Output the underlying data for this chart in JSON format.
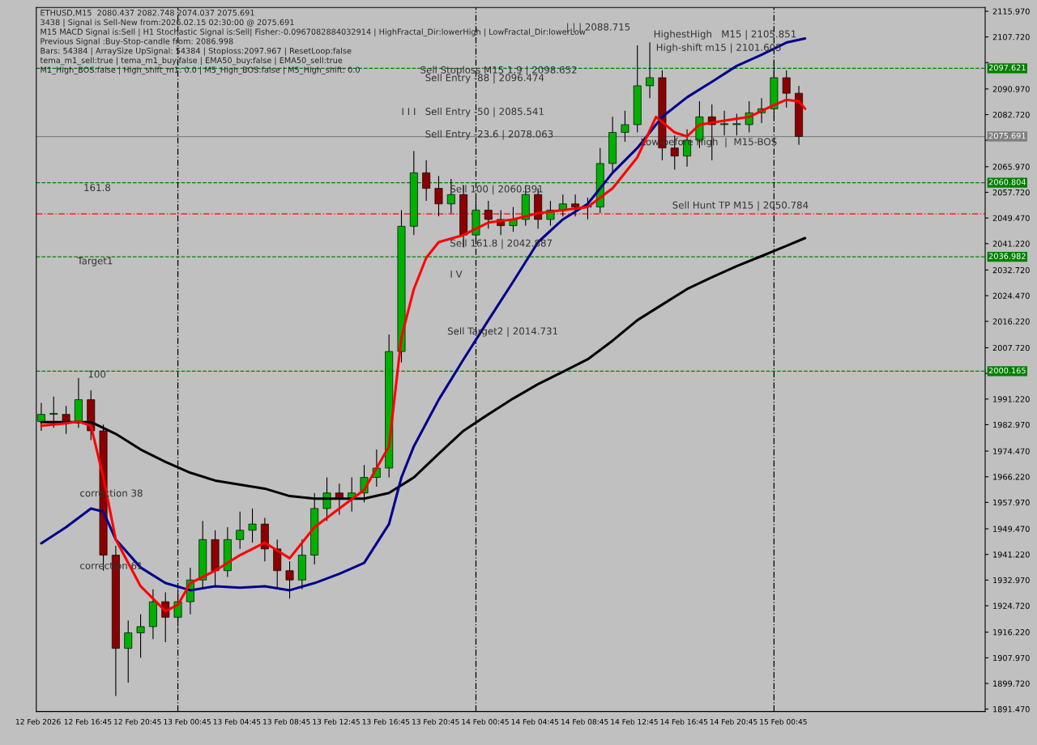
{
  "chart_data": {
    "type": "candlestick",
    "colors": [
      "#00b000",
      "#00b000",
      "#8b0000",
      "#00b000",
      "#8b0000",
      "#8b0000",
      "#8b0000",
      "#00b000",
      "#00b000",
      "#00b000",
      "#8b0000",
      "#00b000",
      "#00b000",
      "#00b000",
      "#8b0000",
      "#00b000",
      "#00b000",
      "#00b000",
      "#8b0000",
      "#8b0000",
      "#8b0000",
      "#00b000",
      "#00b000",
      "#00b000",
      "#8b0000",
      "#00b000",
      "#00b000",
      "#00b000",
      "#00b000",
      "#00b000",
      "#00b000",
      "#8b0000",
      "#8b0000",
      "#00b000",
      "#8b0000",
      "#00b000",
      "#8b0000",
      "#8b0000",
      "#00b000",
      "#00b000",
      "#8b0000",
      "#00b000",
      "#00b000",
      "#8b0000",
      "#00b000",
      "#00b000",
      "#00b000",
      "#00b000",
      "#00b000",
      "#00b000",
      "#8b0000",
      "#8b0000",
      "#00b000",
      "#00b000",
      "#8b0000",
      "#00b000",
      "#00b000",
      "#00b000",
      "#00b000",
      "#00b000",
      "#8b0000",
      "#8b0000"
    ],
    "annotations": [
      "ETHUSD,M15  2080.437 2082.748 2074.037 2075.691",
      "3438 | Signal is Sell-New from:2026.02.15 02:30:00 @ 2075.691",
      "M15 MACD Signal is:Sell | H1 Stochastic Signal is:Sell| Fisher:-0.0967082884032914 | HighFractal_Dir:lowerHigh | LowFractal_Dir:lowerLow",
      "Previous Signal :Buy-Stop-candle from: 2086.998",
      "Bars: 54384 | ArraySize UpSignal: 54384 | Stoploss:2097.967 | ResetLoop:false",
      "tema_m1_sell:true | tema_m1_buy:false | EMA50_buy:false | EMA50_sell:true",
      "M1_High_BOS:false | High_shift_m1: 0.0 | M5_High_BOS:false | M5_High_shift: 0.0",
      "Sell Stoploss M15 1.9 | 2098.652",
      "Sell Entry -88 | 2096.474",
      "Sell Entry -50 | 2085.541",
      "Sell Entry -23.6 | 2078.063",
      "Sell 100 | 2060.391",
      "Sell 161.8 | 2042.887",
      "Sell Target2 | 2014.731",
      "I I I",
      "I V",
      "| | | 2088.715",
      "HighestHigh   M15 | 2105.851",
      "High-shift m15 | 2101.605",
      "Low before High  |  M15-BOS",
      "Sell Hunt TP M15 | 2050.784",
      "161.8",
      "Target1",
      "100",
      "correction 38",
      "correction 61"
    ],
    "x": [
      "2026-02-12T13:00",
      "2026-02-12T14:00",
      "2026-02-12T15:00",
      "2026-02-12T16:00",
      "2026-02-12T17:00",
      "2026-02-12T18:00",
      "2026-02-12T19:00",
      "2026-02-12T20:00",
      "2026-02-12T21:00",
      "2026-02-12T22:00",
      "2026-02-12T23:00",
      "2026-02-13T00:00",
      "2026-02-13T01:00",
      "2026-02-13T02:00",
      "2026-02-13T03:00",
      "2026-02-13T04:00",
      "2026-02-13T05:00",
      "2026-02-13T06:00",
      "2026-02-13T07:00",
      "2026-02-13T08:00",
      "2026-02-13T09:00",
      "2026-02-13T10:00",
      "2026-02-13T11:00",
      "2026-02-13T12:00",
      "2026-02-13T13:00",
      "2026-02-13T14:00",
      "2026-02-13T15:00",
      "2026-02-13T16:00",
      "2026-02-13T17:00",
      "2026-02-13T18:00",
      "2026-02-13T19:00",
      "2026-02-13T20:00",
      "2026-02-13T21:00",
      "2026-02-13T22:00",
      "2026-02-13T23:00",
      "2026-02-14T00:00",
      "2026-02-14T01:00",
      "2026-02-14T02:00",
      "2026-02-14T03:00",
      "2026-02-14T04:00",
      "2026-02-14T05:00",
      "2026-02-14T06:00",
      "2026-02-14T07:00",
      "2026-02-14T08:00",
      "2026-02-14T09:00",
      "2026-02-14T10:00",
      "2026-02-14T11:00",
      "2026-02-14T12:00",
      "2026-02-14T13:00",
      "2026-02-14T14:00",
      "2026-02-14T15:00",
      "2026-02-14T16:00",
      "2026-02-14T17:00",
      "2026-02-14T18:00",
      "2026-02-14T19:00",
      "2026-02-14T20:00",
      "2026-02-14T21:00",
      "2026-02-14T22:00",
      "2026-02-14T23:00",
      "2026-02-15T00:00",
      "2026-02-15T01:00",
      "2026-02-15T02:00"
    ],
    "ohlc": [
      [
        1984,
        1990,
        1981,
        1986.3
      ],
      [
        1986.3,
        1992,
        1982,
        1986.3
      ],
      [
        1986.3,
        1989,
        1980,
        1983.8
      ],
      [
        1983.8,
        1998,
        1982,
        1991
      ],
      [
        1991,
        1994,
        1978,
        1981
      ],
      [
        1981,
        1983,
        1936,
        1941
      ],
      [
        1941,
        1944,
        1895.7,
        1911
      ],
      [
        1911,
        1920,
        1900,
        1916
      ],
      [
        1916,
        1922,
        1908,
        1918
      ],
      [
        1918,
        1930,
        1914,
        1926
      ],
      [
        1926,
        1929,
        1913,
        1921
      ],
      [
        1921,
        1930,
        1918,
        1926
      ],
      [
        1926,
        1937,
        1922,
        1933
      ],
      [
        1933,
        1952,
        1930,
        1946
      ],
      [
        1946,
        1949,
        1931,
        1936
      ],
      [
        1936,
        1950,
        1934,
        1946
      ],
      [
        1946,
        1955,
        1943,
        1949
      ],
      [
        1949,
        1956,
        1945,
        1951
      ],
      [
        1951,
        1953,
        1939,
        1943
      ],
      [
        1943,
        1946,
        1930,
        1936
      ],
      [
        1936,
        1939,
        1927,
        1933
      ],
      [
        1933,
        1946,
        1930,
        1941
      ],
      [
        1941,
        1961,
        1938,
        1956
      ],
      [
        1956,
        1966,
        1952,
        1961
      ],
      [
        1961,
        1964,
        1954,
        1959
      ],
      [
        1959,
        1966,
        1955,
        1961
      ],
      [
        1961,
        1970,
        1958,
        1966
      ],
      [
        1966,
        1975,
        1963,
        1969
      ],
      [
        1969,
        2012,
        1966,
        2006.5
      ],
      [
        2006.5,
        2052,
        2003,
        2046.8
      ],
      [
        2046.8,
        2071,
        2044,
        2064
      ],
      [
        2064,
        2068,
        2055,
        2059
      ],
      [
        2059,
        2063,
        2050,
        2054
      ],
      [
        2054,
        2062,
        2051,
        2057
      ],
      [
        2057,
        2060,
        2040,
        2044
      ],
      [
        2044,
        2056,
        2041,
        2052
      ],
      [
        2052,
        2055,
        2046,
        2049
      ],
      [
        2049,
        2052,
        2044,
        2047
      ],
      [
        2047,
        2053,
        2045,
        2049
      ],
      [
        2049,
        2060,
        2047,
        2057
      ],
      [
        2057,
        2059,
        2046,
        2049
      ],
      [
        2049,
        2055,
        2047,
        2052
      ],
      [
        2052,
        2057,
        2050,
        2054
      ],
      [
        2054,
        2057,
        2050,
        2053
      ],
      [
        2053,
        2056,
        2049,
        2053
      ],
      [
        2053,
        2072,
        2051,
        2067
      ],
      [
        2067,
        2082,
        2064,
        2077
      ],
      [
        2077,
        2084,
        2074,
        2079.5
      ],
      [
        2079.5,
        2105,
        2077,
        2092
      ],
      [
        2092,
        2106,
        2088,
        2094.6
      ],
      [
        2094.6,
        2097,
        2068,
        2072
      ],
      [
        2072,
        2076,
        2065,
        2069.4
      ],
      [
        2069.4,
        2078,
        2066,
        2074.5
      ],
      [
        2074.5,
        2087,
        2072,
        2082
      ],
      [
        2082,
        2086,
        2068,
        2079.5
      ],
      [
        2079.5,
        2084,
        2076,
        2079.5
      ],
      [
        2079.5,
        2083,
        2076,
        2079.5
      ],
      [
        2079.5,
        2087,
        2077,
        2083.3
      ],
      [
        2083.3,
        2088,
        2080,
        2084.6
      ],
      [
        2084.6,
        2100,
        2082,
        2094.6
      ],
      [
        2094.6,
        2097,
        2085,
        2089.6
      ],
      [
        2089.6,
        2092,
        2073,
        2075.7
      ]
    ],
    "series": [
      {
        "type": "line",
        "color": "#000000",
        "x": [
          "2026-02-12T13:00",
          "2026-02-12T17:00",
          "2026-02-12T19:00",
          "2026-02-12T21:00",
          "2026-02-12T23:00",
          "2026-02-13T01:00",
          "2026-02-13T03:00",
          "2026-02-13T05:00",
          "2026-02-13T07:00",
          "2026-02-13T09:00",
          "2026-02-13T11:00",
          "2026-02-13T13:00",
          "2026-02-13T15:00",
          "2026-02-13T17:00",
          "2026-02-13T19:00",
          "2026-02-13T21:00",
          "2026-02-13T23:00",
          "2026-02-14T01:00",
          "2026-02-14T03:00",
          "2026-02-14T05:00",
          "2026-02-14T07:00",
          "2026-02-14T09:00",
          "2026-02-14T11:00",
          "2026-02-14T13:00",
          "2026-02-14T15:00",
          "2026-02-14T17:00",
          "2026-02-14T19:00",
          "2026-02-14T21:00",
          "2026-02-14T23:00",
          "2026-02-15T01:00",
          "2026-02-15T02:30"
        ],
        "values": [
          1983.8,
          1983.8,
          1980,
          1975,
          1971,
          1967.5,
          1965,
          1963.7,
          1962.4,
          1960,
          1959.2,
          1959.2,
          1959.2,
          1961,
          1966,
          1973.6,
          1981,
          1986.3,
          1991.4,
          1996,
          2000,
          2004,
          2010,
          2016.6,
          2021.6,
          2026.6,
          2030.4,
          2034,
          2037.2,
          2040.5,
          2043
        ]
      },
      {
        "type": "line",
        "color": "#00008b",
        "x": [
          "2026-02-12T13:00",
          "2026-02-12T15:00",
          "2026-02-12T17:00",
          "2026-02-12T18:00",
          "2026-02-12T19:00",
          "2026-02-12T21:00",
          "2026-02-12T23:00",
          "2026-02-13T01:00",
          "2026-02-13T03:00",
          "2026-02-13T05:00",
          "2026-02-13T07:00",
          "2026-02-13T09:00",
          "2026-02-13T11:00",
          "2026-02-13T13:00",
          "2026-02-13T15:00",
          "2026-02-13T17:00",
          "2026-02-13T18:00",
          "2026-02-13T19:00",
          "2026-02-13T21:00",
          "2026-02-13T23:00",
          "2026-02-14T01:00",
          "2026-02-14T03:00",
          "2026-02-14T05:00",
          "2026-02-14T07:00",
          "2026-02-14T09:00",
          "2026-02-14T11:00",
          "2026-02-14T13:00",
          "2026-02-14T15:00",
          "2026-02-14T17:00",
          "2026-02-14T19:00",
          "2026-02-14T21:00",
          "2026-02-14T23:00",
          "2026-02-15T01:00",
          "2026-02-15T02:30"
        ],
        "values": [
          1944.8,
          1950,
          1956,
          1955,
          1946,
          1937,
          1932,
          1929.7,
          1931,
          1930.5,
          1931,
          1929.7,
          1932,
          1935,
          1938.5,
          1951,
          1966,
          1976,
          1991,
          2004,
          2016.6,
          2029,
          2041.7,
          2049,
          2054,
          2064,
          2072,
          2082,
          2088.3,
          2093.3,
          2098.4,
          2102,
          2105.9,
          2107.2
        ]
      },
      {
        "type": "line",
        "color": "#ff0000",
        "x": [
          "2026-02-12T13:00",
          "2026-02-12T15:00",
          "2026-02-12T16:00",
          "2026-02-12T17:00",
          "2026-02-12T18:00",
          "2026-02-12T19:00",
          "2026-02-12T21:00",
          "2026-02-12T23:00",
          "2026-02-13T00:00",
          "2026-02-13T01:00",
          "2026-02-13T03:00",
          "2026-02-13T05:00",
          "2026-02-13T07:00",
          "2026-02-13T09:00",
          "2026-02-13T11:00",
          "2026-02-13T13:00",
          "2026-02-13T15:00",
          "2026-02-13T17:00",
          "2026-02-13T18:00",
          "2026-02-13T19:00",
          "2026-02-13T20:00",
          "2026-02-13T21:00",
          "2026-02-13T23:00",
          "2026-02-14T01:00",
          "2026-02-14T03:00",
          "2026-02-14T05:00",
          "2026-02-14T07:00",
          "2026-02-14T09:00",
          "2026-02-14T11:00",
          "2026-02-14T13:00",
          "2026-02-14T14:30",
          "2026-02-14T16:00",
          "2026-02-14T17:00",
          "2026-02-14T18:00",
          "2026-02-14T20:00",
          "2026-02-14T22:00",
          "2026-02-15T00:00",
          "2026-02-15T01:00",
          "2026-02-15T02:00",
          "2026-02-15T02:30"
        ],
        "values": [
          1982.6,
          1983.4,
          1984,
          1982.6,
          1966,
          1946,
          1931,
          1923,
          1925,
          1932,
          1936,
          1941,
          1945,
          1940,
          1950,
          1956,
          1962,
          1976,
          2011,
          2026.6,
          2036.7,
          2041.7,
          2044,
          2048,
          2049,
          2051,
          2052,
          2053,
          2059,
          2069,
          2082,
          2077,
          2075.7,
          2079.5,
          2080.8,
          2082,
          2085.8,
          2087.5,
          2087,
          2084.6
        ]
      }
    ],
    "ref_lines": [
      {
        "axis": "y",
        "value": 2097.621,
        "label": "2097.621",
        "color": "#008000",
        "line_style": "dashed"
      },
      {
        "axis": "y",
        "value": 2075.691,
        "label": "2075.691",
        "color": "#808080",
        "line_style": "solid"
      },
      {
        "axis": "y",
        "value": 2060.804,
        "label": "2060.804",
        "color": "#008000",
        "line_style": "dashed"
      },
      {
        "axis": "y",
        "value": 2050.784,
        "color": "#ff0000",
        "line_style": "dotted"
      },
      {
        "axis": "y",
        "value": 2036.982,
        "label": "2036.982",
        "color": "#008000",
        "line_style": "dashed"
      },
      {
        "axis": "y",
        "value": 2000.165,
        "label": "2000.165",
        "color": "#008000",
        "line_style": "dashed"
      },
      {
        "axis": "x",
        "value": "2026-02-13T00:00",
        "color": "#000000",
        "line_style": "dotted"
      },
      {
        "axis": "x",
        "value": "2026-02-14T00:00",
        "color": "#000000",
        "line_style": "dotted"
      },
      {
        "axis": "x",
        "value": "2026-02-15T00:00",
        "color": "#000000",
        "line_style": "dotted"
      }
    ],
    "xlim": [
      "2026-02-12T12:36",
      "2026-02-15T17:00"
    ],
    "ylim": [
      1890.7,
      2117.2
    ],
    "xticks": [
      {
        "value": "2026-02-12T12:45",
        "label": "12 Feb 2026"
      },
      {
        "value": "2026-02-12T16:45",
        "label": "12 Feb 16:45"
      },
      {
        "value": "2026-02-12T20:45",
        "label": "12 Feb 20:45"
      },
      {
        "value": "2026-02-13T00:45",
        "label": "13 Feb 00:45"
      },
      {
        "value": "2026-02-13T04:45",
        "label": "13 Feb 04:45"
      },
      {
        "value": "2026-02-13T08:45",
        "label": "13 Feb 08:45"
      },
      {
        "value": "2026-02-13T12:45",
        "label": "13 Feb 12:45"
      },
      {
        "value": "2026-02-13T16:45",
        "label": "13 Feb 16:45"
      },
      {
        "value": "2026-02-13T20:45",
        "label": "13 Feb 20:45"
      },
      {
        "value": "2026-02-14T00:45",
        "label": "14 Feb 00:45"
      },
      {
        "value": "2026-02-14T04:45",
        "label": "14 Feb 04:45"
      },
      {
        "value": "2026-02-14T08:45",
        "label": "14 Feb 08:45"
      },
      {
        "value": "2026-02-14T12:45",
        "label": "14 Feb 12:45"
      },
      {
        "value": "2026-02-14T16:45",
        "label": "14 Feb 16:45"
      },
      {
        "value": "2026-02-14T20:45",
        "label": "14 Feb 20:45"
      },
      {
        "value": "2026-02-15T00:45",
        "label": "15 Feb 00:45"
      }
    ],
    "yticks": [
      {
        "value": 2115.97,
        "label": "2115.970"
      },
      {
        "value": 2107.72,
        "label": "2107.720"
      },
      {
        "value": 2099.47,
        "label": null
      },
      {
        "value": 2090.97,
        "label": "2090.970"
      },
      {
        "value": 2082.72,
        "label": "2082.720"
      },
      {
        "value": 2074.47,
        "label": null
      },
      {
        "value": 2065.97,
        "label": "2065.970"
      },
      {
        "value": 2057.72,
        "label": "2057.720"
      },
      {
        "value": 2049.47,
        "label": "2049.470"
      },
      {
        "value": 2041.22,
        "label": "2041.220"
      },
      {
        "value": 2032.72,
        "label": "2032.720"
      },
      {
        "value": 2024.47,
        "label": "2024.470"
      },
      {
        "value": 2016.22,
        "label": "2016.220"
      },
      {
        "value": 2007.72,
        "label": "2007.720"
      },
      {
        "value": 1999.47,
        "label": null
      },
      {
        "value": 1991.22,
        "label": "1991.220"
      },
      {
        "value": 1982.97,
        "label": "1982.970"
      },
      {
        "value": 1974.47,
        "label": "1974.470"
      },
      {
        "value": 1966.22,
        "label": "1966.220"
      },
      {
        "value": 1957.97,
        "label": "1957.970"
      },
      {
        "value": 1949.47,
        "label": "1949.470"
      },
      {
        "value": 1941.22,
        "label": "1941.220"
      },
      {
        "value": 1932.97,
        "label": "1932.970"
      },
      {
        "value": 1924.72,
        "label": "1924.720"
      },
      {
        "value": 1916.22,
        "label": "1916.220"
      },
      {
        "value": 1907.97,
        "label": "1907.970"
      },
      {
        "value": 1899.72,
        "label": "1899.720"
      },
      {
        "value": 1891.47,
        "label": "1891.470"
      }
    ],
    "grid": false
  }
}
